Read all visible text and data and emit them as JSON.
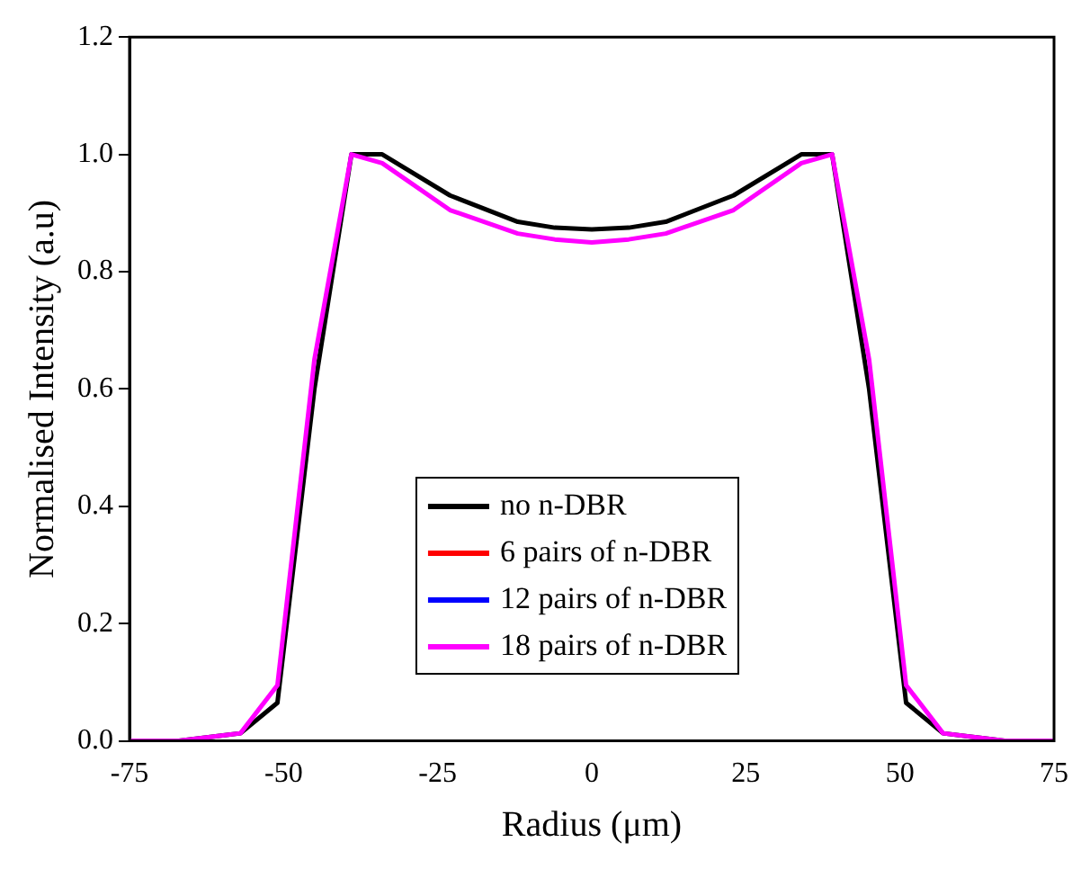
{
  "chart_data": {
    "type": "line",
    "xlabel": "Radius (μm)",
    "ylabel": "Normalised Intensity (a.u)",
    "x": [
      -75,
      -67,
      -57,
      -51,
      -45,
      -39,
      -34,
      -23,
      -12,
      -6,
      0,
      6,
      12,
      23,
      34,
      39,
      45,
      51,
      57,
      67,
      75
    ],
    "series": [
      {
        "name": "no n-DBR",
        "color": "#000000",
        "values": [
          0,
          0,
          0.013,
          0.065,
          0.6,
          1.0,
          1.0,
          0.93,
          0.885,
          0.875,
          0.872,
          0.875,
          0.885,
          0.93,
          1.0,
          1.0,
          0.6,
          0.065,
          0.013,
          0,
          0
        ]
      },
      {
        "name": "6 pairs of n-DBR",
        "color": "#ff0000",
        "values": [
          null,
          null,
          null,
          null,
          null,
          null,
          null,
          null,
          null,
          null,
          null,
          null,
          null,
          null,
          null,
          null,
          null,
          null,
          null,
          null,
          null
        ]
      },
      {
        "name": "12 pairs of n-DBR",
        "color": "#0000ff",
        "values": [
          null,
          null,
          null,
          null,
          null,
          null,
          null,
          null,
          null,
          null,
          null,
          null,
          null,
          null,
          null,
          null,
          null,
          null,
          null,
          null,
          null
        ]
      },
      {
        "name": "18 pairs of n-DBR",
        "color": "#ff00ff",
        "values": [
          0,
          0,
          0.013,
          0.095,
          0.65,
          1.0,
          0.985,
          0.905,
          0.865,
          0.855,
          0.85,
          0.855,
          0.865,
          0.905,
          0.985,
          1.0,
          0.65,
          0.095,
          0.013,
          0,
          0
        ]
      }
    ],
    "xlim": [
      -75,
      75
    ],
    "xticks": [
      -75,
      -50,
      -25,
      0,
      25,
      50,
      75
    ],
    "ylim": [
      0,
      1.2
    ],
    "yticks": [
      {
        "value": 0,
        "label": "0.0"
      },
      {
        "value": 0.2,
        "label": "0.2"
      },
      {
        "value": 0.4,
        "label": "0.4"
      },
      {
        "value": 0.6,
        "label": "0.6"
      },
      {
        "value": 0.8,
        "label": "0.8"
      },
      {
        "value": 1.0,
        "label": "1.0"
      },
      {
        "value": 1.2,
        "label": "1.2"
      }
    ],
    "grid": false,
    "legend": "bottom",
    "marker": "none",
    "line_style": "solid"
  }
}
